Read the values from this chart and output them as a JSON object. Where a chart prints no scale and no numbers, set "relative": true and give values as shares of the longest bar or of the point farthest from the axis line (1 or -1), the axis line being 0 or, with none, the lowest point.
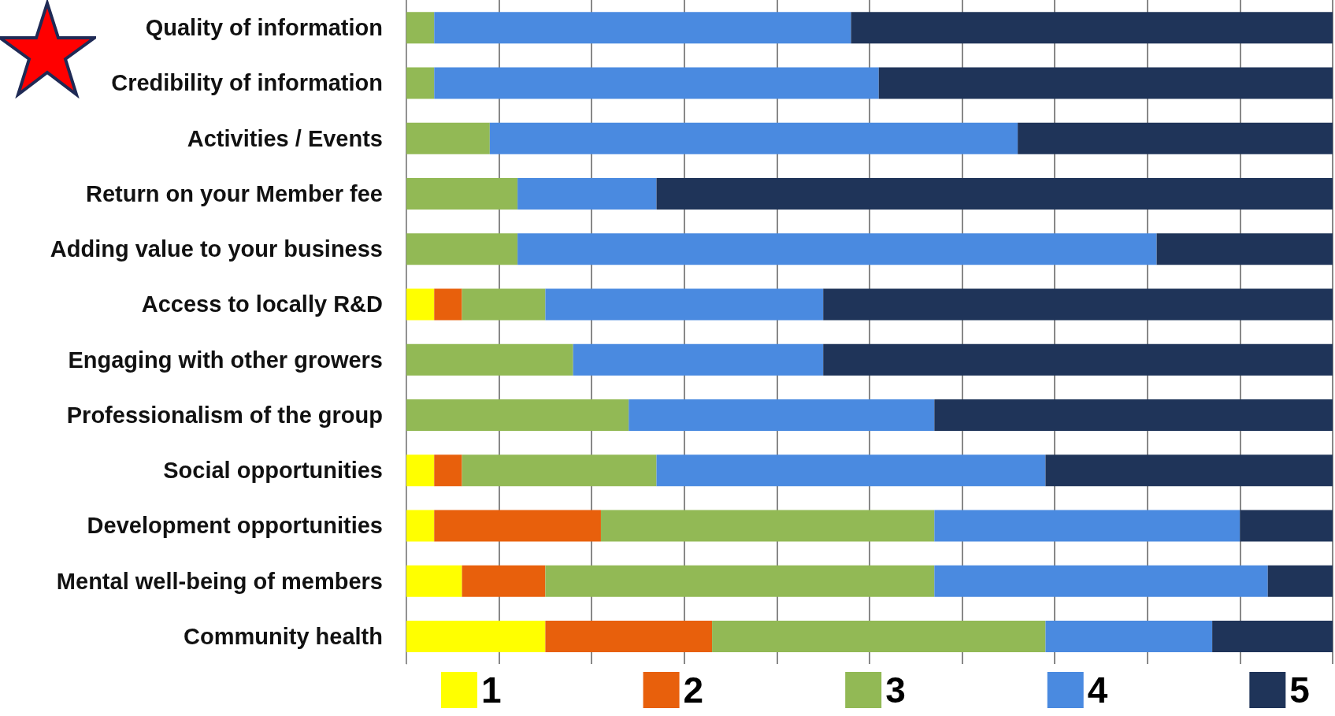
{
  "chart_data": {
    "type": "bar",
    "orientation": "horizontal",
    "stacked": true,
    "relative": true,
    "grid": true,
    "legend": "bottom",
    "categories": [
      "Quality of information",
      "Credibility of information",
      "Activities / Events",
      "Return on your Member fee",
      "Adding value to your business",
      "Access to locally R&D",
      "Engaging with other growers",
      "Professionalism of the group",
      "Social opportunities",
      "Development opportunities",
      "Mental well-being of members",
      "Community health"
    ],
    "series": [
      {
        "name": "1",
        "color": "#ffff00",
        "values": [
          0,
          0,
          0,
          0,
          0,
          0.03,
          0,
          0,
          0.03,
          0.03,
          0.06,
          0.15
        ]
      },
      {
        "name": "2",
        "color": "#e8600c",
        "values": [
          0,
          0,
          0,
          0,
          0,
          0.03,
          0,
          0,
          0.03,
          0.18,
          0.09,
          0.18
        ]
      },
      {
        "name": "3",
        "color": "#92b955",
        "values": [
          0.03,
          0.03,
          0.09,
          0.12,
          0.12,
          0.09,
          0.18,
          0.24,
          0.21,
          0.36,
          0.42,
          0.36
        ]
      },
      {
        "name": "4",
        "color": "#4a8ae0",
        "values": [
          0.45,
          0.48,
          0.57,
          0.15,
          0.69,
          0.3,
          0.27,
          0.33,
          0.42,
          0.33,
          0.36,
          0.18
        ]
      },
      {
        "name": "5",
        "color": "#1f3459",
        "values": [
          0.52,
          0.49,
          0.34,
          0.73,
          0.19,
          0.55,
          0.55,
          0.43,
          0.31,
          0.1,
          0.07,
          0.13
        ]
      }
    ]
  }
}
